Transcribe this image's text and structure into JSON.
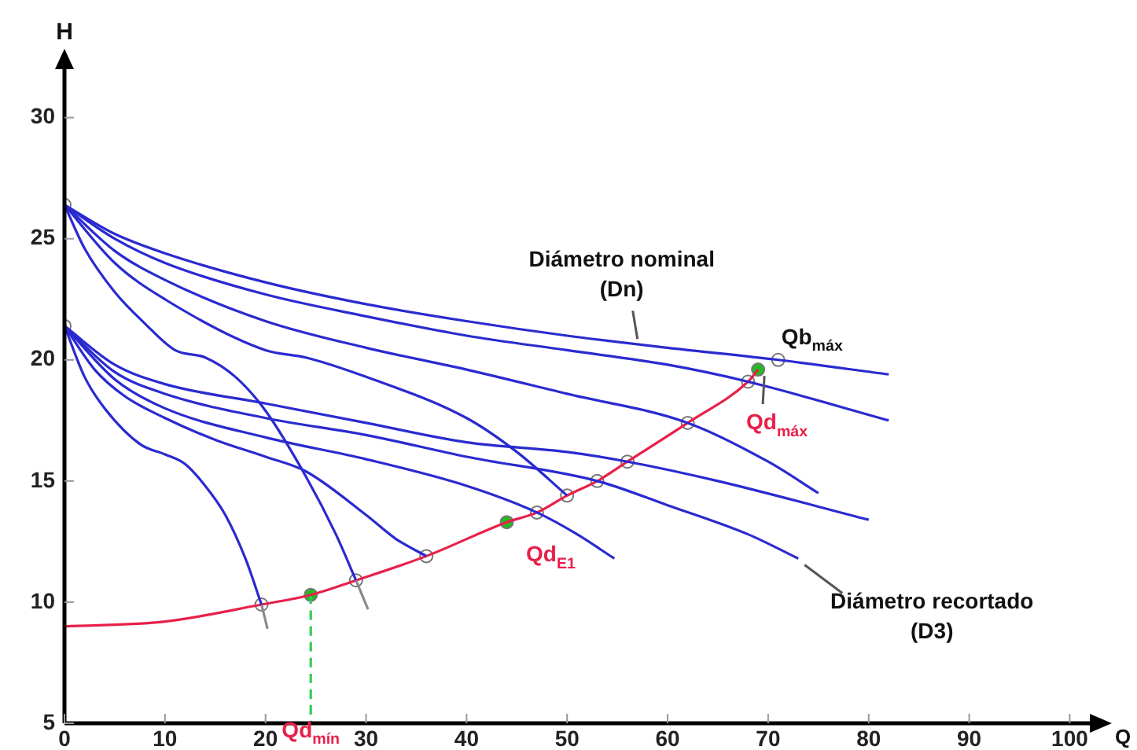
{
  "chart_data": {
    "type": "line",
    "xlabel": "Q",
    "ylabel": "H",
    "xlim": [
      0,
      102
    ],
    "ylim": [
      5,
      32
    ],
    "xticks": [
      0,
      10,
      20,
      30,
      40,
      50,
      60,
      70,
      80,
      90,
      100
    ],
    "yticks": [
      5,
      10,
      15,
      20,
      25,
      30
    ],
    "grid": false,
    "legend": false,
    "series": [
      {
        "color": "#2a2ad0",
        "marker": "none",
        "x": [
          0,
          5,
          10,
          20,
          30,
          40,
          50,
          60,
          71,
          82
        ],
        "values": [
          26.4,
          25.2,
          24.4,
          23.2,
          22.3,
          21.6,
          21.0,
          20.5,
          20.0,
          19.4
        ]
      },
      {
        "type": "line",
        "color": "#2a2ad0",
        "marker": "none",
        "x": [
          0,
          5,
          10,
          20,
          30,
          40,
          50,
          60,
          68,
          82
        ],
        "values": [
          26.4,
          25.0,
          24.0,
          22.7,
          21.8,
          21.0,
          20.4,
          19.8,
          19.1,
          17.5
        ]
      },
      {
        "type": "line",
        "color": "#2a2ad0",
        "marker": "none",
        "x": [
          0,
          5,
          10,
          20,
          30,
          40,
          50,
          62,
          70,
          75
        ],
        "values": [
          26.4,
          24.5,
          23.3,
          21.6,
          20.5,
          19.6,
          18.6,
          17.4,
          15.8,
          14.5
        ]
      },
      {
        "type": "line",
        "color": "#2a2ad0",
        "marker": "none",
        "x": [
          0,
          5,
          10,
          20,
          24,
          30,
          40,
          45,
          50
        ],
        "values": [
          26.4,
          24.0,
          22.5,
          20.4,
          20.1,
          19.3,
          17.6,
          16.2,
          14.4
        ]
      },
      {
        "type": "line",
        "color": "#2a2ad0",
        "marker": "none",
        "x": [
          0,
          2,
          5,
          8,
          11,
          14,
          17,
          20,
          24,
          27,
          29
        ],
        "values": [
          26.4,
          24.6,
          22.8,
          21.5,
          20.4,
          20.1,
          19.3,
          17.9,
          15.2,
          12.8,
          10.9
        ]
      },
      {
        "type": "line",
        "color": "#2a2ad0",
        "marker": "none",
        "x": [
          0,
          2,
          4,
          7.6,
          10,
          12,
          14,
          16,
          18,
          19.6
        ],
        "values": [
          21.4,
          19.3,
          18.0,
          16.5,
          16.1,
          15.7,
          14.8,
          13.6,
          11.8,
          9.9
        ]
      },
      {
        "type": "line",
        "color": "#2a2ad0",
        "marker": "none",
        "x": [
          0,
          3,
          6,
          10,
          15,
          20,
          24,
          30,
          33,
          36
        ],
        "values": [
          21.4,
          19.6,
          18.5,
          17.6,
          16.7,
          16.0,
          15.4,
          13.6,
          12.6,
          11.9
        ]
      },
      {
        "type": "line",
        "color": "#2a2ad0",
        "marker": "none",
        "x": [
          0,
          5,
          10,
          20,
          30,
          40,
          50,
          56,
          65,
          80
        ],
        "values": [
          21.4,
          19.8,
          19.0,
          18.2,
          17.4,
          16.6,
          16.2,
          15.8,
          15.0,
          13.4
        ]
      },
      {
        "type": "line",
        "color": "#2a2ad0",
        "marker": "none",
        "x": [
          0,
          5,
          10,
          20,
          30,
          40,
          53,
          60,
          68,
          73
        ],
        "values": [
          21.4,
          19.5,
          18.6,
          17.6,
          16.9,
          16.0,
          15.0,
          14.0,
          12.8,
          11.8
        ]
      },
      {
        "type": "line",
        "color": "#2a2ad0",
        "marker": "none",
        "x": [
          0,
          5,
          10,
          20,
          30,
          40,
          47,
          51,
          54.7
        ],
        "values": [
          21.4,
          19.2,
          18.0,
          16.8,
          15.9,
          14.8,
          13.7,
          12.8,
          11.8
        ]
      },
      {
        "type": "line",
        "color": "#8a8a8a",
        "marker": "none",
        "x": [
          19.6,
          20.2
        ],
        "values": [
          9.9,
          8.9
        ]
      },
      {
        "type": "line",
        "color": "#8a8a8a",
        "marker": "none",
        "x": [
          29,
          30.2
        ],
        "values": [
          10.9,
          9.7
        ]
      },
      {
        "type": "line",
        "color": "#e8204a",
        "marker": "none",
        "x": [
          0,
          10,
          19.6,
          24.5,
          29,
          36,
          44,
          47,
          50,
          53,
          56,
          62,
          68,
          69
        ],
        "values": [
          9.0,
          9.2,
          9.9,
          10.3,
          10.9,
          11.9,
          13.3,
          13.7,
          14.4,
          15.0,
          15.8,
          17.4,
          19.1,
          19.6
        ]
      },
      {
        "type": "line",
        "color": "#33cc55",
        "marker": "none",
        "line_style": "dashed",
        "x": [
          24.5,
          24.5
        ],
        "values": [
          10.3,
          5
        ]
      },
      {
        "type": "scatter",
        "color": "#ffffff",
        "marker": "circle",
        "x": [
          0,
          0,
          19.6,
          29,
          36,
          47,
          50,
          53,
          56,
          62,
          68,
          71
        ],
        "values": [
          26.4,
          21.4,
          9.9,
          10.9,
          11.9,
          13.7,
          14.4,
          15.0,
          15.8,
          17.4,
          19.1,
          20.0
        ]
      },
      {
        "type": "scatter",
        "color": "#22bb22",
        "marker": "circle",
        "x": [
          24.5,
          44,
          69
        ],
        "values": [
          10.3,
          13.3,
          19.6
        ]
      }
    ],
    "annotations": [
      {
        "text": "Diámetro nominal (Dn)",
        "x": 57,
        "y": 20.6
      },
      {
        "text": "Qb$_{máx}$",
        "x": 71,
        "y": 20.0
      },
      {
        "text": "Qd$_{máx}$",
        "x": 69,
        "y": 19.6
      },
      {
        "text": "Qd$_{E1}$",
        "x": 44,
        "y": 13.3
      },
      {
        "text": "Qd$_{mín}$",
        "x": 24.5,
        "y": 5
      },
      {
        "text": "Diámetro recortado (D3)",
        "x": 73,
        "y": 11.8
      }
    ]
  }
}
